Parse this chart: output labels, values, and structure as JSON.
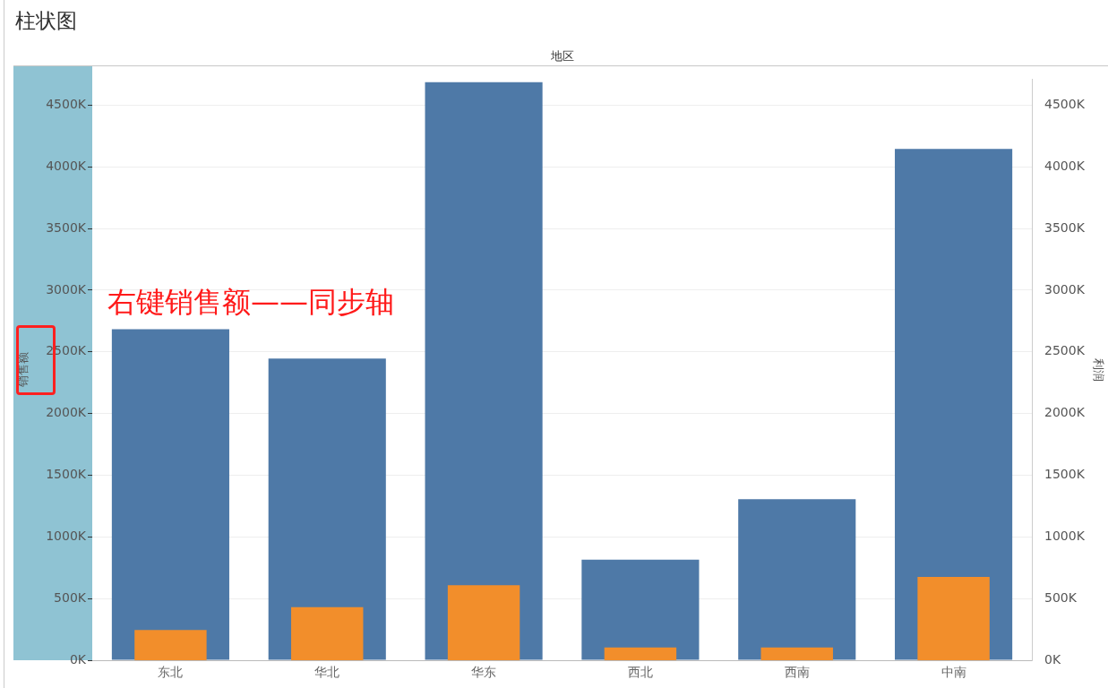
{
  "chart_data": {
    "type": "bar",
    "title": "柱状图",
    "xlabel": "地区",
    "ylabel": "销售额",
    "y2label": "利润",
    "categories": [
      "东北",
      "华北",
      "华东",
      "西北",
      "西南",
      "中南"
    ],
    "series": [
      {
        "color": "#4e79a7",
        "values": [
          2684000,
          2446000,
          4685000,
          815000,
          1305000,
          4144000
        ]
      },
      {
        "color": "#f28e2b",
        "axis": "y2",
        "values": [
          245000,
          430000,
          608000,
          104000,
          104000,
          675000
        ]
      }
    ],
    "ylim": [
      0,
      4710000
    ],
    "yticks": [
      {
        "value": 0,
        "label": "0K"
      },
      {
        "value": 500000,
        "label": "500K"
      },
      {
        "value": 1000000,
        "label": "1000K"
      },
      {
        "value": 1500000,
        "label": "1500K"
      },
      {
        "value": 2000000,
        "label": "2000K"
      },
      {
        "value": 2500000,
        "label": "2500K"
      },
      {
        "value": 3000000,
        "label": "3000K"
      },
      {
        "value": 3500000,
        "label": "3500K"
      },
      {
        "value": 4000000,
        "label": "4000K"
      },
      {
        "value": 4500000,
        "label": "4500K"
      }
    ],
    "y2lim": [
      0,
      4710000
    ],
    "y2ticks": [
      {
        "value": 0,
        "label": "0K"
      },
      {
        "value": 500000,
        "label": "500K"
      },
      {
        "value": 1000000,
        "label": "1000K"
      },
      {
        "value": 1500000,
        "label": "1500K"
      },
      {
        "value": 2000000,
        "label": "2000K"
      },
      {
        "value": 2500000,
        "label": "2500K"
      },
      {
        "value": 3000000,
        "label": "3000K"
      },
      {
        "value": 3500000,
        "label": "3500K"
      },
      {
        "value": 4000000,
        "label": "4000K"
      },
      {
        "value": 4500000,
        "label": "4500K"
      }
    ],
    "grid": "y",
    "annotations": [
      "右键销售额——同步轴"
    ]
  }
}
